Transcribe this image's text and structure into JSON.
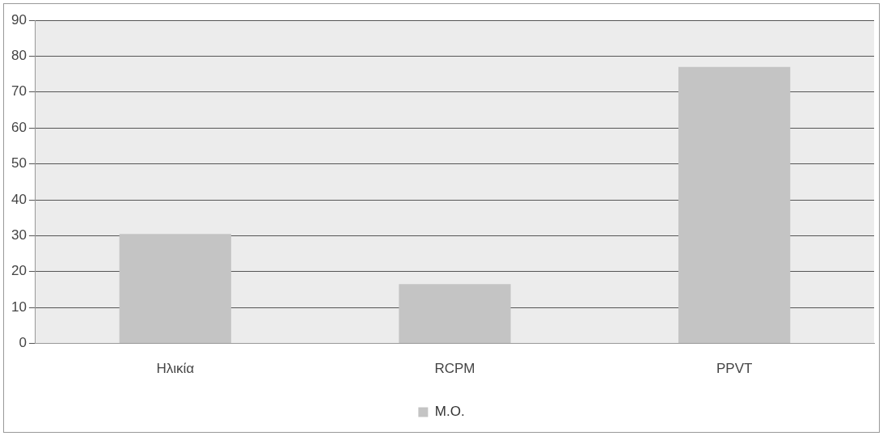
{
  "chart_data": {
    "type": "bar",
    "categories": [
      "Ηλικία",
      "RCPM",
      "PPVT"
    ],
    "series": [
      {
        "name": "M.O.",
        "color": "#c4c4c4",
        "values": [
          30.5,
          16.5,
          77
        ]
      }
    ],
    "ylim": [
      0,
      90
    ],
    "yticks": [
      0,
      10,
      20,
      30,
      40,
      50,
      60,
      70,
      80,
      90
    ],
    "grid": "y",
    "legend": "bottom"
  }
}
